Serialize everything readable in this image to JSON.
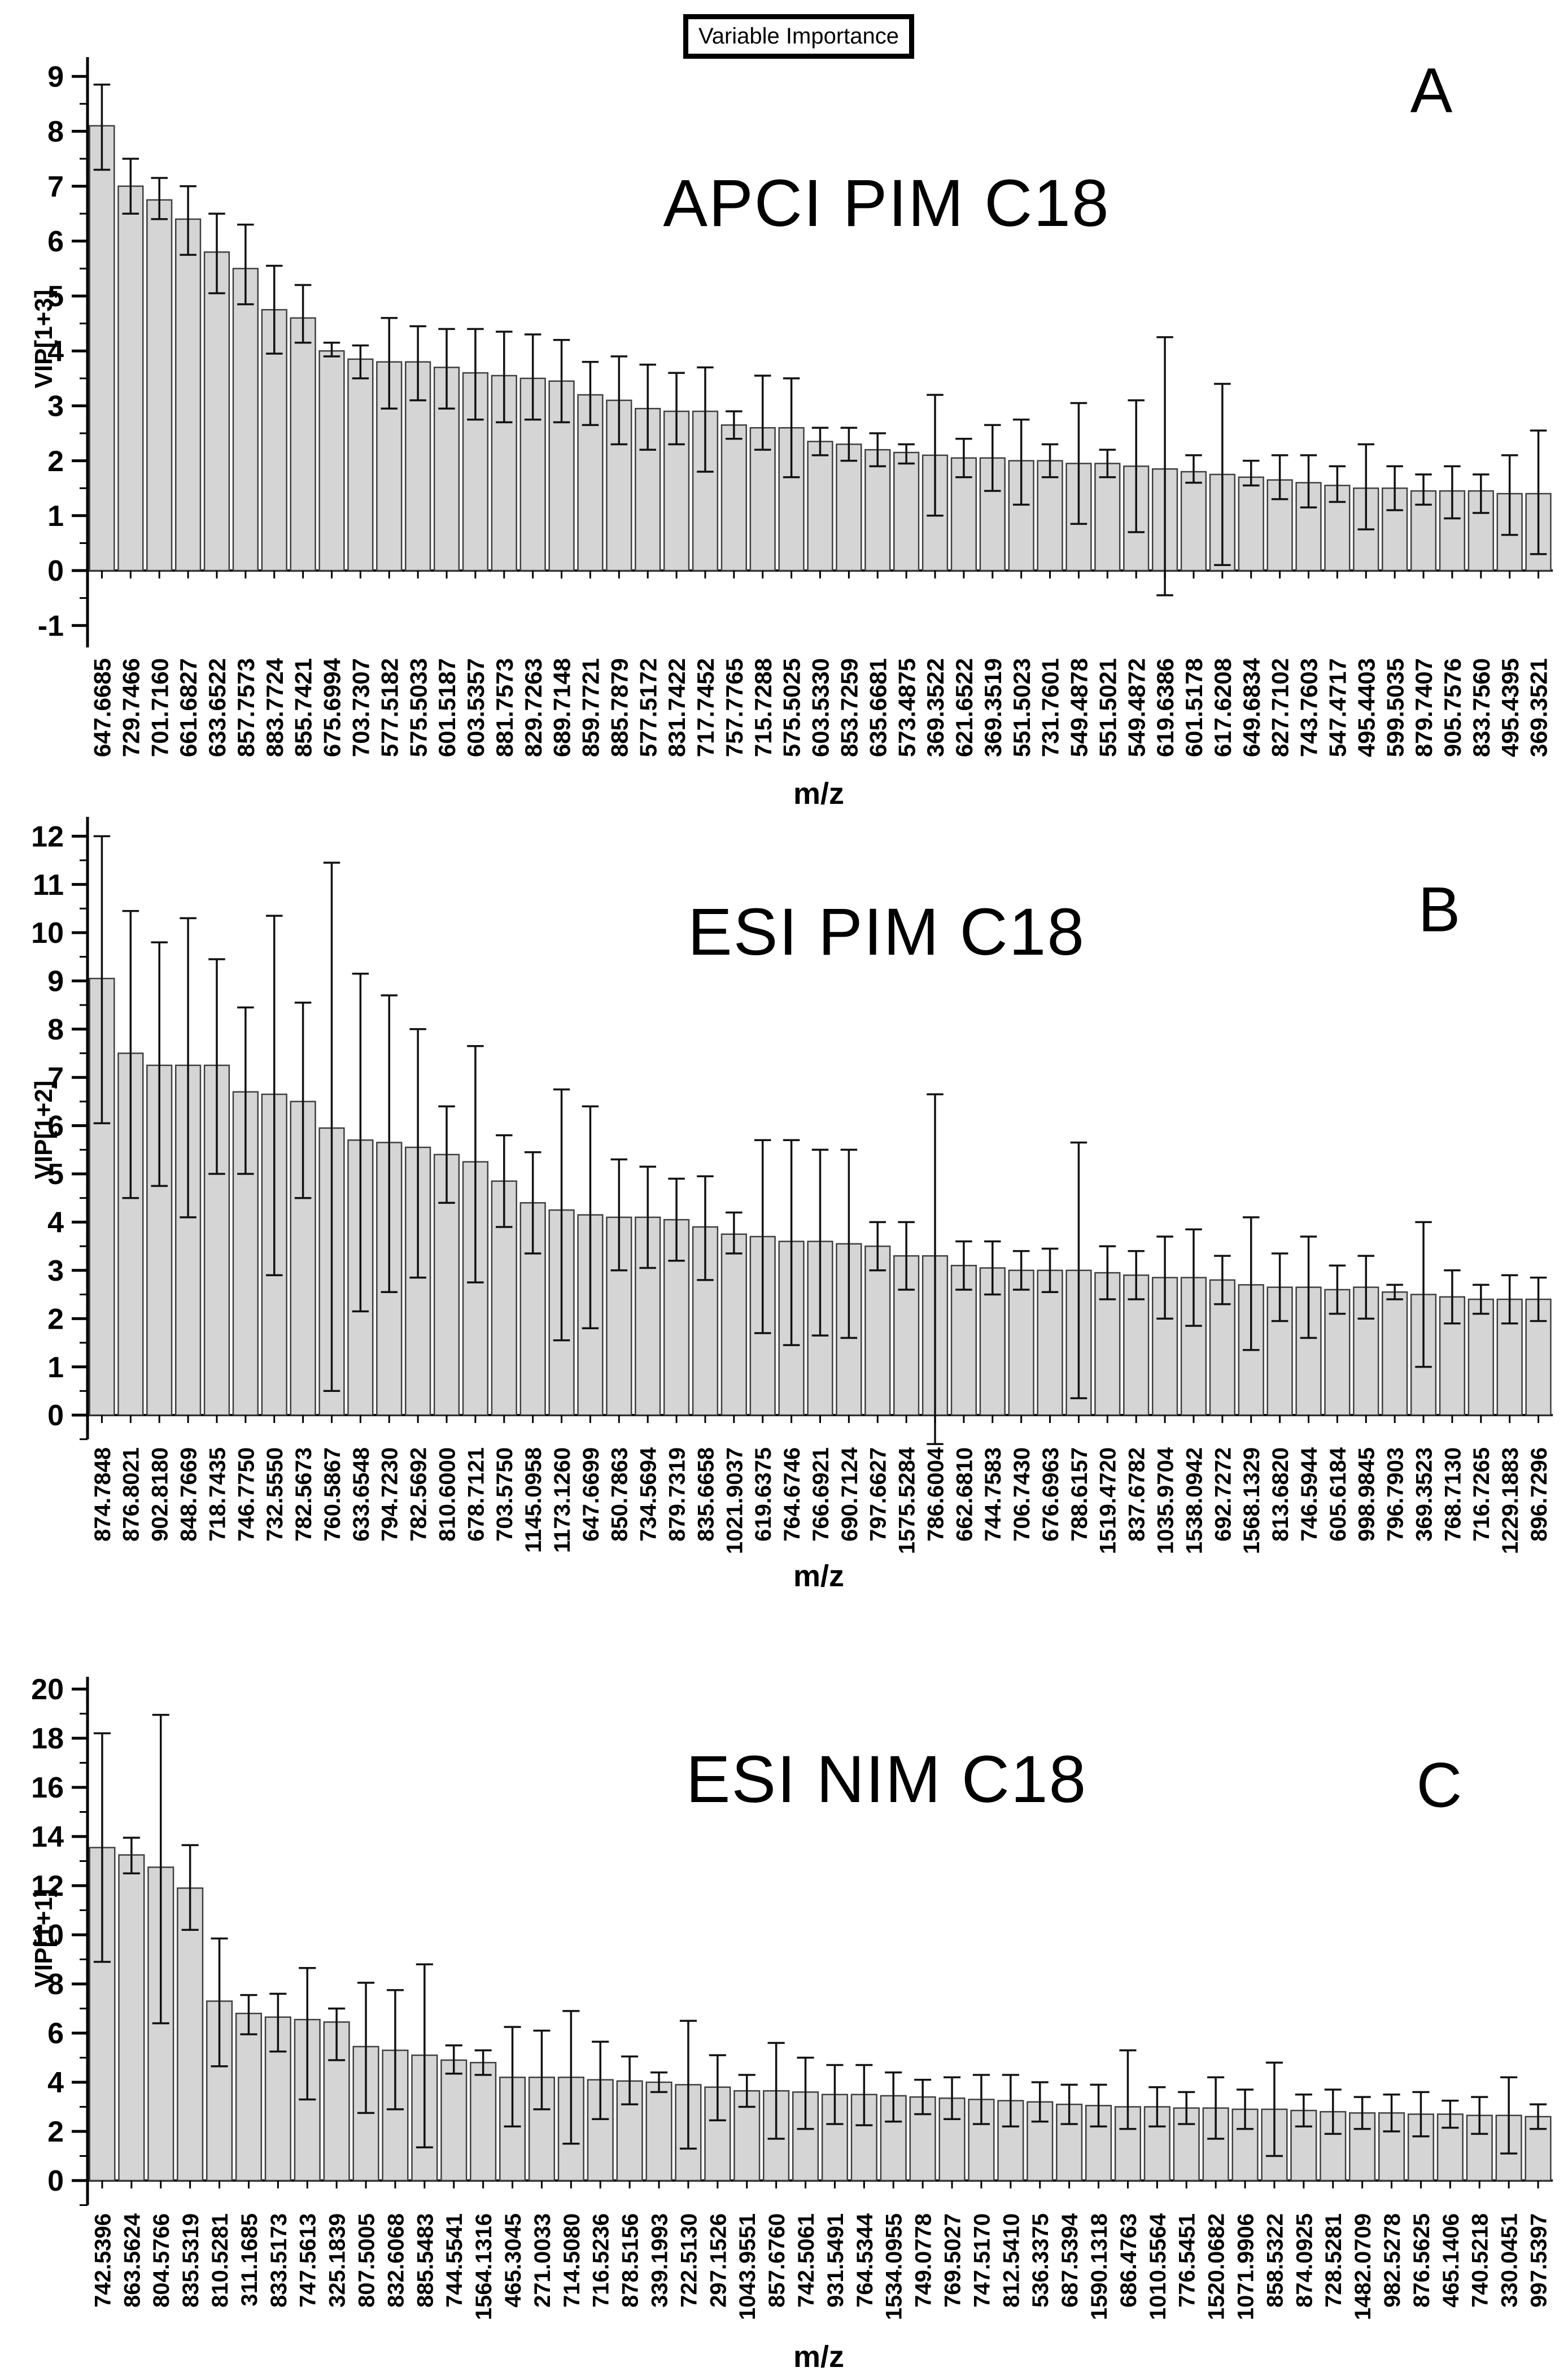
{
  "figure": {
    "title": "Variable Importance",
    "xlabel": "m/z"
  },
  "colors": {
    "bar_fill": "#d5d5d5",
    "bar_stroke": "#3f3f3f",
    "axis": "#000000",
    "error_bar": "#111111"
  },
  "chart_data": [
    {
      "type": "bar",
      "panel": "A",
      "title": "APCI PIM C18",
      "ylabel": "VIP[1+3]",
      "ylim": [
        -1,
        9
      ],
      "yticks": [
        -1,
        0,
        1,
        2,
        3,
        4,
        5,
        6,
        7,
        8,
        9
      ],
      "grid": false,
      "categories": [
        "647.6685",
        "729.7466",
        "701.7160",
        "661.6827",
        "633.6522",
        "857.7573",
        "883.7724",
        "855.7421",
        "675.6994",
        "703.7307",
        "577.5182",
        "575.5033",
        "601.5187",
        "603.5357",
        "881.7573",
        "829.7263",
        "689.7148",
        "859.7721",
        "885.7879",
        "577.5172",
        "831.7422",
        "717.7452",
        "757.7765",
        "715.7288",
        "575.5025",
        "603.5330",
        "853.7259",
        "635.6681",
        "573.4875",
        "369.3522",
        "621.6522",
        "369.3519",
        "551.5023",
        "731.7601",
        "549.4878",
        "551.5021",
        "549.4872",
        "619.6386",
        "601.5178",
        "617.6208",
        "649.6834",
        "827.7102",
        "743.7603",
        "547.4717",
        "495.4403",
        "599.5035",
        "879.7407",
        "905.7576",
        "833.7560",
        "495.4395",
        "369.3521"
      ],
      "values": [
        8.1,
        7.0,
        6.75,
        6.4,
        5.8,
        5.5,
        4.75,
        4.6,
        4.0,
        3.85,
        3.8,
        3.8,
        3.7,
        3.6,
        3.55,
        3.5,
        3.45,
        3.2,
        3.1,
        2.95,
        2.9,
        2.9,
        2.65,
        2.6,
        2.6,
        2.35,
        2.3,
        2.2,
        2.15,
        2.1,
        2.05,
        2.05,
        2.0,
        2.0,
        1.95,
        1.95,
        1.9,
        1.85,
        1.8,
        1.75,
        1.7,
        1.65,
        1.6,
        1.55,
        1.5,
        1.5,
        1.45,
        1.45,
        1.45,
        1.4,
        1.4
      ],
      "err_low": [
        7.3,
        6.5,
        6.4,
        5.75,
        5.05,
        4.85,
        3.95,
        4.15,
        3.9,
        3.5,
        2.95,
        3.1,
        2.95,
        2.75,
        2.7,
        2.75,
        2.7,
        2.65,
        2.3,
        2.2,
        2.3,
        1.8,
        2.4,
        2.2,
        1.7,
        2.1,
        2.0,
        1.9,
        1.95,
        1.0,
        1.7,
        1.45,
        1.2,
        1.7,
        0.85,
        1.7,
        0.7,
        -0.45,
        1.6,
        0.1,
        1.55,
        1.3,
        1.15,
        1.25,
        0.75,
        1.1,
        1.2,
        0.95,
        1.05,
        0.65,
        0.3
      ],
      "err_high": [
        8.85,
        7.5,
        7.15,
        7.0,
        6.5,
        6.3,
        5.55,
        5.2,
        4.15,
        4.1,
        4.6,
        4.45,
        4.4,
        4.4,
        4.35,
        4.3,
        4.2,
        3.8,
        3.9,
        3.75,
        3.6,
        3.7,
        2.9,
        3.55,
        3.5,
        2.6,
        2.6,
        2.5,
        2.3,
        3.2,
        2.4,
        2.65,
        2.75,
        2.3,
        3.05,
        2.2,
        3.1,
        4.25,
        2.1,
        3.4,
        2.0,
        2.1,
        2.1,
        1.9,
        2.3,
        1.9,
        1.75,
        1.9,
        1.75,
        2.1,
        2.55
      ]
    },
    {
      "type": "bar",
      "panel": "B",
      "title": "ESI PIM C18",
      "ylabel": "VIP[1+2]",
      "ylim": [
        0,
        12
      ],
      "yticks": [
        0,
        1,
        2,
        3,
        4,
        5,
        6,
        7,
        8,
        9,
        10,
        11,
        12
      ],
      "grid": false,
      "categories": [
        "874.7848",
        "876.8021",
        "902.8180",
        "848.7669",
        "718.7435",
        "746.7750",
        "732.5550",
        "782.5673",
        "760.5867",
        "633.6548",
        "794.7230",
        "782.5692",
        "810.6000",
        "678.7121",
        "703.5750",
        "1145.0958",
        "1173.1260",
        "647.6699",
        "850.7863",
        "734.5694",
        "879.7319",
        "835.6658",
        "1021.9037",
        "619.6375",
        "764.6746",
        "766.6921",
        "690.7124",
        "797.6627",
        "1575.5284",
        "786.6004",
        "662.6810",
        "744.7583",
        "706.7430",
        "676.6963",
        "788.6157",
        "1519.4720",
        "837.6782",
        "1035.9704",
        "1538.0942",
        "692.7272",
        "1568.1329",
        "813.6820",
        "746.5944",
        "605.6184",
        "998.9845",
        "796.7903",
        "369.3523",
        "768.7130",
        "716.7265",
        "1229.1883",
        "896.7296"
      ],
      "values": [
        9.05,
        7.5,
        7.25,
        7.25,
        7.25,
        6.7,
        6.65,
        6.5,
        5.95,
        5.7,
        5.65,
        5.55,
        5.4,
        5.25,
        4.85,
        4.4,
        4.25,
        4.15,
        4.1,
        4.1,
        4.05,
        3.9,
        3.75,
        3.7,
        3.6,
        3.6,
        3.55,
        3.5,
        3.3,
        3.3,
        3.1,
        3.05,
        3.0,
        3.0,
        3.0,
        2.95,
        2.9,
        2.85,
        2.85,
        2.8,
        2.7,
        2.65,
        2.65,
        2.6,
        2.65,
        2.55,
        2.5,
        2.45,
        2.4,
        2.4,
        2.4
      ],
      "err_low": [
        6.05,
        4.5,
        4.75,
        4.1,
        5.0,
        5.0,
        2.9,
        4.5,
        0.5,
        2.15,
        2.55,
        2.85,
        4.4,
        2.75,
        3.9,
        3.35,
        1.55,
        1.8,
        3.0,
        3.05,
        3.2,
        2.8,
        3.35,
        1.7,
        1.45,
        1.65,
        1.6,
        3.0,
        2.6,
        -0.6,
        2.6,
        2.5,
        2.6,
        2.55,
        0.35,
        2.4,
        2.4,
        2.0,
        1.85,
        2.3,
        1.35,
        1.95,
        1.6,
        2.1,
        2.0,
        2.4,
        1.0,
        1.9,
        2.1,
        1.9,
        1.95
      ],
      "err_high": [
        12.0,
        10.45,
        9.8,
        10.3,
        9.45,
        8.45,
        10.35,
        8.55,
        11.45,
        9.15,
        8.7,
        8.0,
        6.4,
        7.65,
        5.8,
        5.45,
        6.75,
        6.4,
        5.3,
        5.15,
        4.9,
        4.95,
        4.2,
        5.7,
        5.7,
        5.5,
        5.5,
        4.0,
        4.0,
        6.65,
        3.6,
        3.6,
        3.4,
        3.45,
        5.65,
        3.5,
        3.4,
        3.7,
        3.85,
        3.3,
        4.1,
        3.35,
        3.7,
        3.1,
        3.3,
        2.7,
        4.0,
        3.0,
        2.7,
        2.9,
        2.85
      ]
    },
    {
      "type": "bar",
      "panel": "C",
      "title": "ESI NIM C18",
      "ylabel": "VIP[1+1]",
      "ylim": [
        0,
        20
      ],
      "yticks": [
        0,
        2,
        4,
        6,
        8,
        10,
        12,
        14,
        16,
        18,
        20
      ],
      "grid": false,
      "categories": [
        "742.5396",
        "863.5624",
        "804.5766",
        "835.5319",
        "810.5281",
        "311.1685",
        "833.5173",
        "747.5613",
        "325.1839",
        "807.5005",
        "832.6068",
        "885.5483",
        "744.5541",
        "1564.1316",
        "465.3045",
        "271.0033",
        "714.5080",
        "716.5236",
        "878.5156",
        "339.1993",
        "722.5130",
        "297.1526",
        "1043.9551",
        "857.6760",
        "742.5061",
        "931.5491",
        "764.5344",
        "1534.0955",
        "749.0778",
        "769.5027",
        "747.5170",
        "812.5410",
        "536.3375",
        "687.5394",
        "1590.1318",
        "686.4763",
        "1010.5564",
        "776.5451",
        "1520.0682",
        "1071.9906",
        "858.5322",
        "874.0925",
        "728.5281",
        "1482.0709",
        "982.5278",
        "876.5625",
        "465.1406",
        "740.5218",
        "330.0451",
        "997.5397"
      ],
      "values": [
        13.55,
        13.25,
        12.75,
        11.9,
        7.3,
        6.8,
        6.65,
        6.55,
        6.45,
        5.45,
        5.3,
        5.1,
        4.9,
        4.8,
        4.2,
        4.2,
        4.2,
        4.1,
        4.05,
        4.0,
        3.9,
        3.8,
        3.65,
        3.65,
        3.6,
        3.5,
        3.5,
        3.45,
        3.4,
        3.35,
        3.3,
        3.25,
        3.2,
        3.1,
        3.05,
        3.0,
        3.0,
        2.95,
        2.95,
        2.9,
        2.9,
        2.85,
        2.8,
        2.75,
        2.75,
        2.7,
        2.7,
        2.65,
        2.65,
        2.6
      ],
      "err_low": [
        8.9,
        12.5,
        6.4,
        10.2,
        4.65,
        5.95,
        5.25,
        3.3,
        4.9,
        2.75,
        2.9,
        1.35,
        4.35,
        4.3,
        2.2,
        2.9,
        1.5,
        2.5,
        3.1,
        3.6,
        1.3,
        2.45,
        3.0,
        1.7,
        2.1,
        2.3,
        2.25,
        2.4,
        2.7,
        2.5,
        2.3,
        2.2,
        2.4,
        2.3,
        2.2,
        2.1,
        2.2,
        2.3,
        1.7,
        2.1,
        1.0,
        2.2,
        1.9,
        2.1,
        2.0,
        1.8,
        2.15,
        1.9,
        1.1,
        2.1
      ],
      "err_high": [
        18.2,
        13.95,
        18.95,
        13.65,
        9.85,
        7.55,
        7.6,
        8.65,
        7.0,
        8.05,
        7.75,
        8.8,
        5.5,
        5.3,
        6.25,
        6.1,
        6.9,
        5.65,
        5.05,
        4.4,
        6.5,
        5.1,
        4.3,
        5.6,
        5.0,
        4.7,
        4.7,
        4.4,
        4.1,
        4.2,
        4.3,
        4.3,
        4.0,
        3.9,
        3.9,
        5.3,
        3.8,
        3.6,
        4.2,
        3.7,
        4.8,
        3.5,
        3.7,
        3.4,
        3.5,
        3.6,
        3.25,
        3.4,
        4.2,
        3.1
      ]
    }
  ]
}
